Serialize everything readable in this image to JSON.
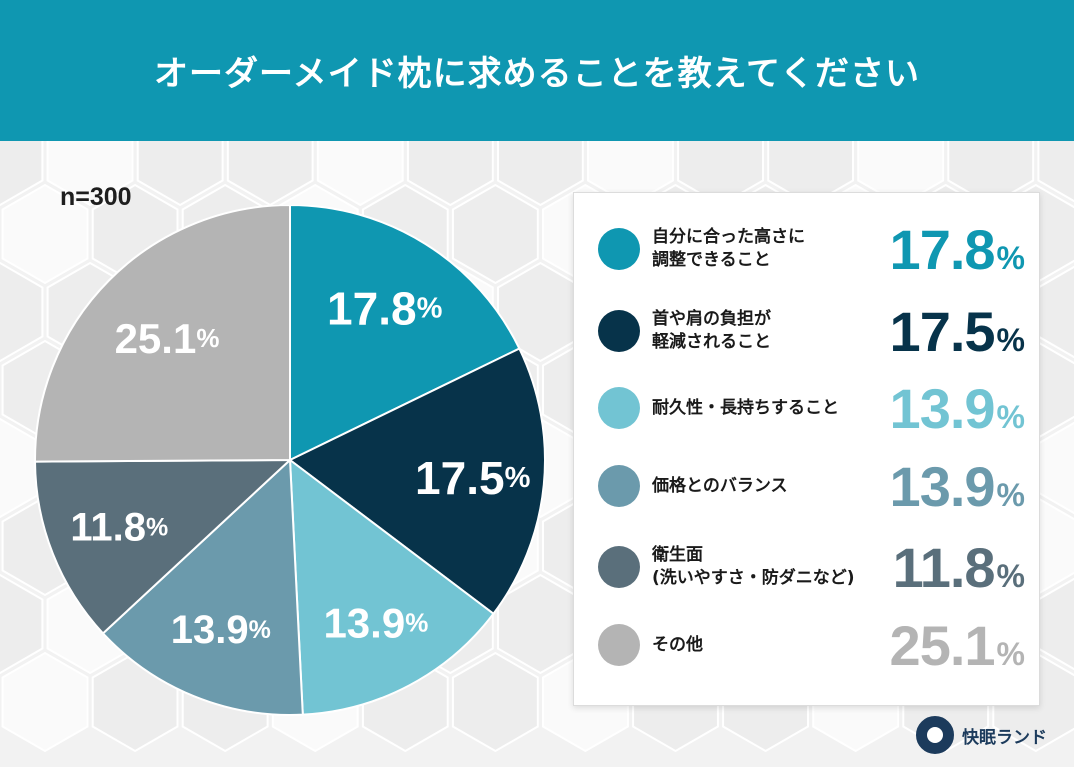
{
  "header": {
    "title": "オーダーメイド枕に求めることを教えてください"
  },
  "sample_label": "n=300",
  "colors": {
    "header_bg": "#0f97b1",
    "slices": [
      "#0f97b1",
      "#07334a",
      "#72c4d3",
      "#6b9aac",
      "#5a6f7b",
      "#b4b4b4"
    ]
  },
  "legend": {
    "items": [
      {
        "lines": [
          "自分に合った高さに",
          "調整できること"
        ],
        "value": "17.8",
        "unit": "%",
        "color": "#0f97b1"
      },
      {
        "lines": [
          "首や肩の負担が",
          "軽減されること"
        ],
        "value": "17.5",
        "unit": "%",
        "color": "#07334a"
      },
      {
        "lines": [
          "耐久性・長持ちすること"
        ],
        "value": "13.9",
        "unit": "%",
        "color": "#72c4d3"
      },
      {
        "lines": [
          "価格とのバランス"
        ],
        "value": "13.9",
        "unit": "%",
        "color": "#6b9aac"
      },
      {
        "lines": [
          "衛生面",
          "(洗いやすさ・防ダニなど)"
        ],
        "value": "11.8",
        "unit": "%",
        "color": "#5a6f7b"
      },
      {
        "lines": [
          "その他"
        ],
        "value": "25.1",
        "unit": "%",
        "color": "#b4b4b4"
      }
    ]
  },
  "brand": {
    "name": "快眠ランド",
    "icon": "sleeping-moon-logo-icon"
  },
  "chart_data": {
    "type": "pie",
    "title": "オーダーメイド枕に求めることを教えてください",
    "note": "n=300",
    "categories": [
      "自分に合った高さに調整できること",
      "首や肩の負担が軽減されること",
      "耐久性・長持ちすること",
      "価格とのバランス",
      "衛生面(洗いやすさ・防ダニなど)",
      "その他"
    ],
    "values": [
      17.8,
      17.5,
      13.9,
      13.9,
      11.8,
      25.1
    ],
    "unit": "%",
    "legend": "right"
  }
}
